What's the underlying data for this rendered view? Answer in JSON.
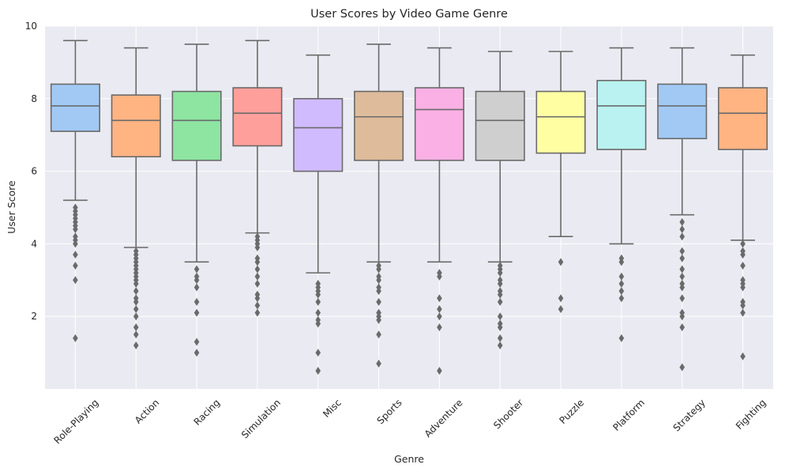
{
  "chart_data": {
    "type": "box",
    "title": "User Scores by Video Game Genre",
    "xlabel": "Genre",
    "ylabel": "User Score",
    "ylim": [
      0,
      10
    ],
    "yticks": [
      2,
      4,
      6,
      8,
      10
    ],
    "grid": true,
    "categories": [
      "Role-Playing",
      "Action",
      "Racing",
      "Simulation",
      "Misc",
      "Sports",
      "Adventure",
      "Shooter",
      "Puzzle",
      "Platform",
      "Strategy",
      "Fighting"
    ],
    "boxes": [
      {
        "category": "Role-Playing",
        "color": "#a1c9f4",
        "whisker_low": 5.2,
        "q1": 7.1,
        "median": 7.8,
        "q3": 8.4,
        "whisker_high": 9.6,
        "outliers": [
          1.4,
          3.0,
          3.4,
          3.7,
          4.0,
          4.1,
          4.2,
          4.4,
          4.5,
          4.6,
          4.7,
          4.8,
          4.9,
          5.0
        ]
      },
      {
        "category": "Action",
        "color": "#ffb482",
        "whisker_low": 3.9,
        "q1": 6.4,
        "median": 7.4,
        "q3": 8.1,
        "whisker_high": 9.4,
        "outliers": [
          1.2,
          1.5,
          1.7,
          2.0,
          2.2,
          2.4,
          2.5,
          2.7,
          2.9,
          3.0,
          3.1,
          3.2,
          3.3,
          3.4,
          3.5,
          3.6,
          3.7,
          3.8
        ]
      },
      {
        "category": "Racing",
        "color": "#8de5a1",
        "whisker_low": 3.5,
        "q1": 6.3,
        "median": 7.4,
        "q3": 8.2,
        "whisker_high": 9.5,
        "outliers": [
          1.0,
          1.3,
          2.1,
          2.4,
          2.8,
          3.0,
          3.1,
          3.3
        ]
      },
      {
        "category": "Simulation",
        "color": "#ff9f9b",
        "whisker_low": 4.3,
        "q1": 6.7,
        "median": 7.6,
        "q3": 8.3,
        "whisker_high": 9.6,
        "outliers": [
          2.1,
          2.3,
          2.5,
          2.6,
          2.9,
          3.1,
          3.3,
          3.5,
          3.6,
          3.9,
          4.0,
          4.1,
          4.2
        ]
      },
      {
        "category": "Misc",
        "color": "#d0bbff",
        "whisker_low": 3.2,
        "q1": 6.0,
        "median": 7.2,
        "q3": 8.0,
        "whisker_high": 9.2,
        "outliers": [
          0.5,
          1.0,
          1.8,
          1.9,
          2.1,
          2.4,
          2.6,
          2.7,
          2.8,
          2.9
        ]
      },
      {
        "category": "Sports",
        "color": "#debb9b",
        "whisker_low": 3.5,
        "q1": 6.3,
        "median": 7.5,
        "q3": 8.2,
        "whisker_high": 9.5,
        "outliers": [
          0.7,
          1.5,
          1.9,
          2.0,
          2.1,
          2.4,
          2.7,
          2.8,
          3.0,
          3.1,
          3.3,
          3.4
        ]
      },
      {
        "category": "Adventure",
        "color": "#fab0e4",
        "whisker_low": 3.5,
        "q1": 6.3,
        "median": 7.7,
        "q3": 8.3,
        "whisker_high": 9.4,
        "outliers": [
          0.5,
          1.7,
          2.0,
          2.2,
          2.5,
          3.1,
          3.2
        ]
      },
      {
        "category": "Shooter",
        "color": "#cfcfcf",
        "whisker_low": 3.5,
        "q1": 6.3,
        "median": 7.4,
        "q3": 8.2,
        "whisker_high": 9.3,
        "outliers": [
          1.2,
          1.4,
          1.7,
          1.8,
          2.0,
          2.4,
          2.6,
          2.7,
          2.9,
          3.0,
          3.2,
          3.3,
          3.4
        ]
      },
      {
        "category": "Puzzle",
        "color": "#fffea3",
        "whisker_low": 4.2,
        "q1": 6.5,
        "median": 7.5,
        "q3": 8.2,
        "whisker_high": 9.3,
        "outliers": [
          2.2,
          2.5,
          3.5
        ]
      },
      {
        "category": "Platform",
        "color": "#b9f2f0",
        "whisker_low": 4.0,
        "q1": 6.6,
        "median": 7.8,
        "q3": 8.5,
        "whisker_high": 9.4,
        "outliers": [
          1.4,
          2.5,
          2.7,
          2.9,
          3.1,
          3.5,
          3.6
        ]
      },
      {
        "category": "Strategy",
        "color": "#a1c9f4",
        "whisker_low": 4.8,
        "q1": 6.9,
        "median": 7.8,
        "q3": 8.4,
        "whisker_high": 9.4,
        "outliers": [
          0.6,
          1.7,
          2.0,
          2.1,
          2.5,
          2.8,
          2.9,
          3.1,
          3.3,
          3.6,
          3.8,
          4.2,
          4.4,
          4.6
        ]
      },
      {
        "category": "Fighting",
        "color": "#ffb482",
        "whisker_low": 4.1,
        "q1": 6.6,
        "median": 7.6,
        "q3": 8.3,
        "whisker_high": 9.2,
        "outliers": [
          0.9,
          2.1,
          2.3,
          2.4,
          2.8,
          2.9,
          3.0,
          3.4,
          3.7,
          3.8,
          4.0
        ]
      }
    ],
    "colors": {
      "plot_background": "#eaeaf2",
      "grid": "#ffffff",
      "line": "#6a6a6a",
      "text": "#262626"
    }
  }
}
